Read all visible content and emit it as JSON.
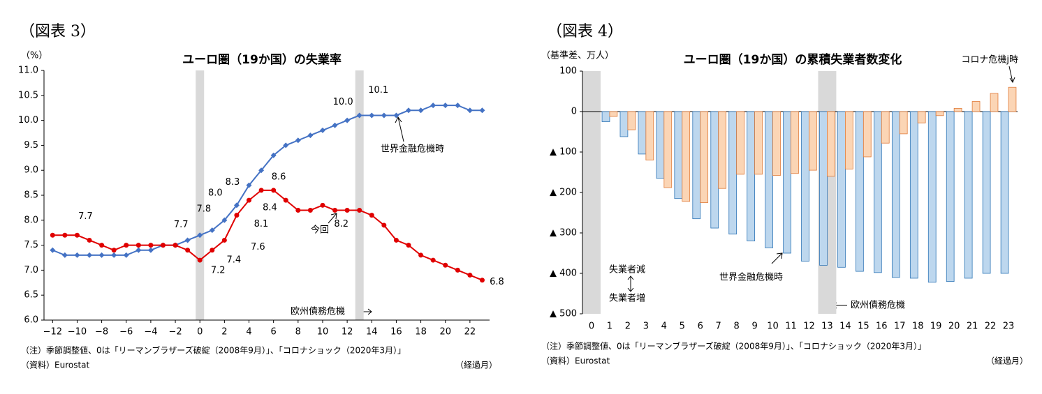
{
  "chart_data": [
    {
      "type": "line",
      "figure_label": "（図表 3）",
      "title": "ユーロ圏（19か国）の失業率",
      "unit_label": "（%）",
      "x_label": "（経過月）",
      "notes": [
        "（注）季節調整値、0は「リーマンブラザーズ破綻（2008年9月）」、「コロナショック（2020年3月）」",
        "（資料）Eurostat"
      ],
      "x": [
        -12,
        -11,
        -10,
        -9,
        -8,
        -7,
        -6,
        -5,
        -4,
        -3,
        -2,
        -1,
        0,
        1,
        2,
        3,
        4,
        5,
        6,
        7,
        8,
        9,
        10,
        11,
        12,
        13,
        14,
        15,
        16,
        17,
        18,
        19,
        20,
        21,
        22,
        23
      ],
      "series": [
        {
          "name": "世界金融危機時",
          "color": "#4472c4",
          "marker": "diamond",
          "values": [
            7.4,
            7.3,
            7.3,
            7.3,
            7.3,
            7.3,
            7.3,
            7.4,
            7.4,
            7.5,
            7.5,
            7.6,
            7.7,
            7.8,
            8.0,
            8.3,
            8.7,
            9.0,
            9.3,
            9.5,
            9.6,
            9.7,
            9.8,
            9.9,
            10.0,
            10.1,
            10.1,
            10.1,
            10.1,
            10.2,
            10.2,
            10.3,
            10.3,
            10.3,
            10.2,
            10.2
          ],
          "value_labels": [
            null,
            null,
            null,
            null,
            null,
            null,
            null,
            null,
            null,
            null,
            null,
            null,
            "7.7",
            "7.8",
            "8.0",
            "8.3",
            null,
            null,
            null,
            null,
            null,
            null,
            null,
            null,
            "10.0",
            "10.1",
            null,
            null,
            null,
            null,
            null,
            null,
            null,
            null,
            null,
            null
          ]
        },
        {
          "name": "今回",
          "color": "#e00000",
          "marker": "circle",
          "values": [
            7.7,
            7.7,
            7.7,
            7.6,
            7.5,
            7.4,
            7.5,
            7.5,
            7.5,
            7.5,
            7.5,
            7.4,
            7.2,
            7.4,
            7.6,
            8.1,
            8.4,
            8.6,
            8.6,
            8.4,
            8.2,
            8.2,
            8.3,
            8.2,
            8.2,
            8.2,
            8.1,
            7.9,
            7.6,
            7.5,
            7.3,
            7.2,
            7.1,
            7.0,
            6.9,
            6.8
          ],
          "value_labels": [
            null,
            null,
            "7.7",
            null,
            null,
            null,
            null,
            null,
            null,
            null,
            null,
            null,
            "7.2",
            "7.4",
            "7.6",
            "8.1",
            "8.4",
            "8.6",
            null,
            null,
            null,
            null,
            null,
            null,
            null,
            "8.2",
            null,
            null,
            null,
            null,
            null,
            null,
            null,
            null,
            null,
            "6.8"
          ]
        }
      ],
      "xlim": [
        -12.7,
        23.6
      ],
      "xticks": [
        {
          "value": -12,
          "label": "−12"
        },
        {
          "value": -10,
          "label": "−10"
        },
        {
          "value": -8,
          "label": "−8"
        },
        {
          "value": -6,
          "label": "−6"
        },
        {
          "value": -4,
          "label": "−4"
        },
        {
          "value": -2,
          "label": "−2"
        },
        0,
        2,
        4,
        6,
        8,
        10,
        12,
        14,
        16,
        18,
        20,
        22
      ],
      "ylim": [
        6,
        11
      ],
      "yticks": [
        {
          "value": 6,
          "label": "6.0"
        },
        {
          "value": 6.5,
          "label": "6.5"
        },
        {
          "value": 7,
          "label": "7.0"
        },
        {
          "value": 7.5,
          "label": "7.5"
        },
        {
          "value": 8,
          "label": "8.0"
        },
        {
          "value": 8.5,
          "label": "8.5"
        },
        {
          "value": 9,
          "label": "9.0"
        },
        {
          "value": 9.5,
          "label": "9.5"
        },
        {
          "value": 10,
          "label": "10.0"
        },
        {
          "value": 10.5,
          "label": "10.5"
        },
        {
          "value": 11,
          "label": "11.0"
        }
      ],
      "shaded_x": [
        0,
        13
      ],
      "grid": false,
      "annotations": [
        "欧州債務危機"
      ]
    },
    {
      "type": "bar",
      "figure_label": "（図表 4）",
      "title": "ユーロ圏（19か国）の累積失業者数変化",
      "unit_label": "（基準差、万人）",
      "x_label": "（経過月）",
      "notes": [
        "（注）季節調整値、0は「リーマンブラザーズ破綻（2008年9月）」、「コロナショック（2020年3月）」",
        "（資料）Eurostat"
      ],
      "categories": [
        0,
        1,
        2,
        3,
        4,
        5,
        6,
        7,
        8,
        9,
        10,
        11,
        12,
        13,
        14,
        15,
        16,
        17,
        18,
        19,
        20,
        21,
        22,
        23
      ],
      "series": [
        {
          "name": "世界金融危機時",
          "color": "#bdd7ee",
          "edge": "#2e75b6",
          "values": [
            null,
            -25,
            -62,
            -105,
            -165,
            -215,
            -265,
            -288,
            -303,
            -320,
            -337,
            -350,
            -370,
            -380,
            -385,
            -395,
            -398,
            -410,
            -412,
            -422,
            -420,
            -412,
            -400,
            -400
          ]
        },
        {
          "name": "コロナ危機j時",
          "color": "#fbd5b5",
          "edge": "#e07b39",
          "values": [
            null,
            -12,
            -45,
            -120,
            -188,
            -222,
            -225,
            -190,
            -155,
            -155,
            -158,
            -153,
            -145,
            -160,
            -142,
            -112,
            -78,
            -55,
            -28,
            -10,
            8,
            25,
            45,
            60
          ]
        }
      ],
      "ylim": [
        -500,
        100
      ],
      "yticks": [
        100,
        0,
        {
          "value": -100,
          "label": "▲ 100"
        },
        {
          "value": -200,
          "label": "▲ 200"
        },
        {
          "value": -300,
          "label": "▲ 300"
        },
        {
          "value": -400,
          "label": "▲ 400"
        },
        {
          "value": -500,
          "label": "▲ 500"
        }
      ],
      "shaded_x": [
        0,
        13
      ],
      "grid": false,
      "annotations": [
        "失業者減",
        "失業者増",
        "欧州債務危機"
      ]
    }
  ]
}
